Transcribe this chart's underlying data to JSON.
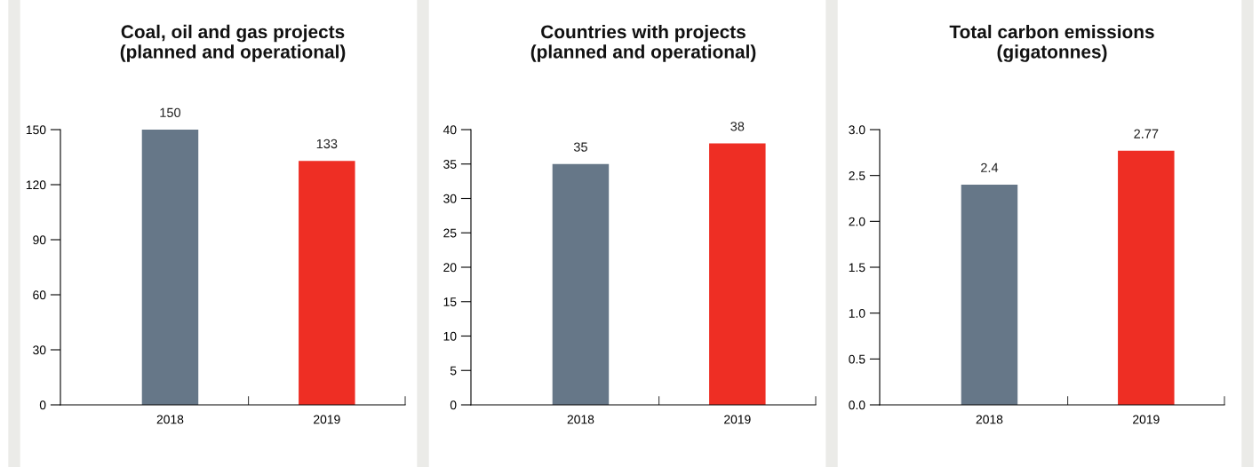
{
  "chart_data": [
    {
      "type": "bar",
      "title": "Coal, oil and gas projects\n(planned and operational)",
      "categories": [
        "2018",
        "2019"
      ],
      "values": [
        150,
        133
      ],
      "colors": [
        "#667788",
        "#ee2e24"
      ],
      "ylim": [
        0,
        150
      ],
      "yticks": [
        0,
        30,
        60,
        90,
        120,
        150
      ],
      "data_labels": true,
      "grid": false
    },
    {
      "type": "bar",
      "title": "Countries with projects\n(planned and operational)",
      "categories": [
        "2018",
        "2019"
      ],
      "values": [
        35,
        38
      ],
      "colors": [
        "#667788",
        "#ee2e24"
      ],
      "ylim": [
        0,
        40
      ],
      "yticks": [
        0,
        5,
        10,
        15,
        20,
        25,
        30,
        35,
        40
      ],
      "data_labels": true,
      "grid": false
    },
    {
      "type": "bar",
      "title": "Total carbon emissions\n(gigatonnes)",
      "categories": [
        "2018",
        "2019"
      ],
      "values": [
        2.4,
        2.77
      ],
      "colors": [
        "#667788",
        "#ee2e24"
      ],
      "ylim": [
        0,
        3.0
      ],
      "yticks": [
        {
          "value": 0,
          "label": "0.0"
        },
        {
          "value": 0.5,
          "label": "0.5"
        },
        {
          "value": 1.0,
          "label": "1.0"
        },
        {
          "value": 1.5,
          "label": "1.5"
        },
        {
          "value": 2.0,
          "label": "2.0"
        },
        {
          "value": 2.5,
          "label": "2.5"
        },
        {
          "value": 3.0,
          "label": "3.0"
        }
      ],
      "data_labels": true,
      "grid": false
    }
  ]
}
